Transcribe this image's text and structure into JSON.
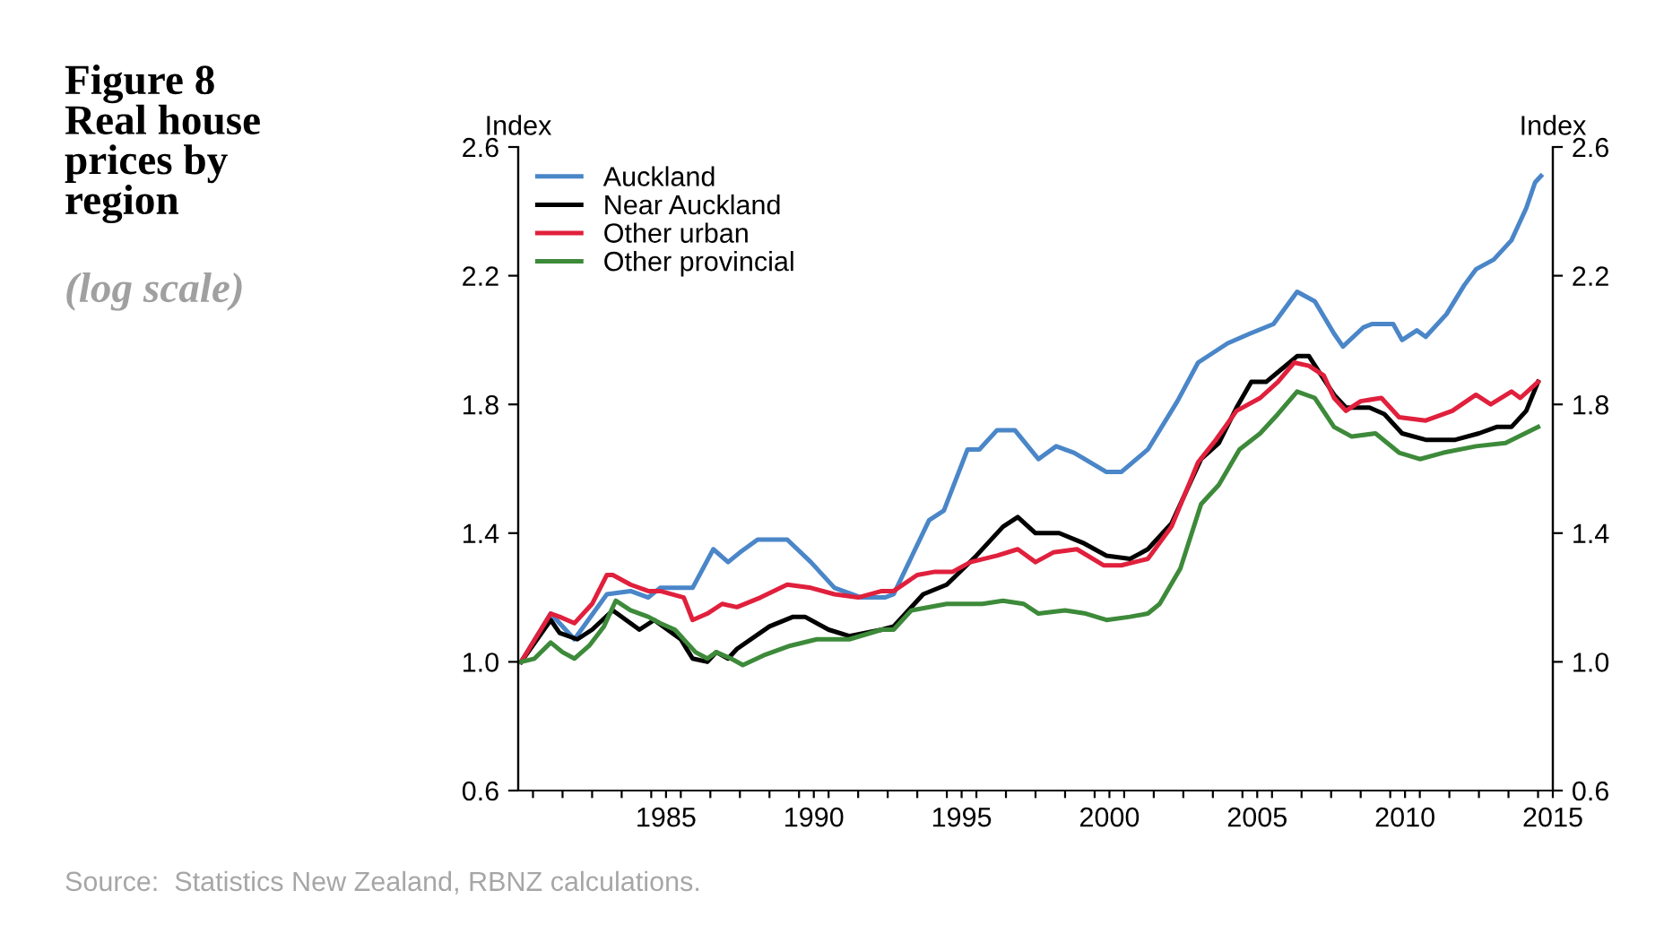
{
  "chart_data": {
    "type": "line",
    "title": "Figure 8\nReal house\nprices by\nregion",
    "subtitle": "(log scale)",
    "ylabel": "Index",
    "y2label": "Index",
    "xlim": [
      1980.5,
      2015.5
    ],
    "xticks": [
      {
        "value": 1981,
        "label": null
      },
      {
        "value": 1982,
        "label": null
      },
      {
        "value": 1983,
        "label": null
      },
      {
        "value": 1984,
        "label": null
      },
      {
        "value": 1985,
        "label": null
      },
      {
        "value": 1985.5,
        "label": "1985"
      },
      {
        "value": 1986,
        "label": null
      },
      {
        "value": 1987,
        "label": null
      },
      {
        "value": 1988,
        "label": null
      },
      {
        "value": 1989,
        "label": null
      },
      {
        "value": 1990,
        "label": null
      },
      {
        "value": 1990.5,
        "label": "1990"
      },
      {
        "value": 1991,
        "label": null
      },
      {
        "value": 1992,
        "label": null
      },
      {
        "value": 1993,
        "label": null
      },
      {
        "value": 1994,
        "label": null
      },
      {
        "value": 1995,
        "label": null
      },
      {
        "value": 1995.5,
        "label": "1995"
      },
      {
        "value": 1996,
        "label": null
      },
      {
        "value": 1997,
        "label": null
      },
      {
        "value": 1998,
        "label": null
      },
      {
        "value": 1999,
        "label": null
      },
      {
        "value": 2000,
        "label": null
      },
      {
        "value": 2000.5,
        "label": "2000"
      },
      {
        "value": 2001,
        "label": null
      },
      {
        "value": 2002,
        "label": null
      },
      {
        "value": 2003,
        "label": null
      },
      {
        "value": 2004,
        "label": null
      },
      {
        "value": 2005,
        "label": null
      },
      {
        "value": 2005.5,
        "label": "2005"
      },
      {
        "value": 2006,
        "label": null
      },
      {
        "value": 2007,
        "label": null
      },
      {
        "value": 2008,
        "label": null
      },
      {
        "value": 2009,
        "label": null
      },
      {
        "value": 2010,
        "label": null
      },
      {
        "value": 2010.5,
        "label": "2010"
      },
      {
        "value": 2011,
        "label": null
      },
      {
        "value": 2012,
        "label": null
      },
      {
        "value": 2013,
        "label": null
      },
      {
        "value": 2014,
        "label": null
      },
      {
        "value": 2015,
        "label": null
      },
      {
        "value": 2015.5,
        "label": "2015"
      }
    ],
    "ylim": [
      0.6,
      2.6
    ],
    "yticks": [
      {
        "value": 0.6,
        "label": "0.6"
      },
      {
        "value": 1.0,
        "label": "1.0"
      },
      {
        "value": 1.4,
        "label": "1.4"
      },
      {
        "value": 1.8,
        "label": "1.8"
      },
      {
        "value": 2.2,
        "label": "2.2"
      },
      {
        "value": 2.6,
        "label": "2.6"
      }
    ],
    "y2lim": [
      0.6,
      2.6
    ],
    "y2ticks": [
      {
        "value": 0.6,
        "label": "0.6"
      },
      {
        "value": 1.0,
        "label": "1.0"
      },
      {
        "value": 1.4,
        "label": "1.4"
      },
      {
        "value": 1.8,
        "label": "1.8"
      },
      {
        "value": 2.2,
        "label": "2.2"
      },
      {
        "value": 2.6,
        "label": "2.6"
      }
    ],
    "grid": false,
    "legend": "top left",
    "marker": "none",
    "line_style": "solid",
    "annotations": [
      "Source:  Statistics New Zealand, RBNZ calculations."
    ],
    "series": [
      {
        "name": "Auckland",
        "color": "#4a86c8",
        "x": [
          1980.6,
          1981.6,
          1982.4,
          1983.5,
          1984.3,
          1984.9,
          1985.3,
          1986.4,
          1987.1,
          1987.6,
          1988.0,
          1988.6,
          1989.6,
          1990.4,
          1991.2,
          1992.1,
          1992.9,
          1993.2,
          1994.4,
          1994.9,
          1995.7,
          1996.1,
          1996.7,
          1997.3,
          1998.1,
          1998.7,
          1999.3,
          2000.4,
          2000.9,
          2001.8,
          2002.8,
          2003.5,
          2004.0,
          2004.5,
          2005.25,
          2006.05,
          2006.85,
          2007.45,
          2008.1,
          2008.4,
          2009.1,
          2009.4,
          2010.1,
          2010.4,
          2010.9,
          2011.2,
          2011.9,
          2012.5,
          2012.9,
          2013.5,
          2014.1,
          2014.6,
          2014.9,
          2015.1
        ],
        "values": [
          1.0,
          1.15,
          1.07,
          1.21,
          1.22,
          1.2,
          1.23,
          1.23,
          1.35,
          1.31,
          1.34,
          1.38,
          1.38,
          1.31,
          1.23,
          1.2,
          1.2,
          1.21,
          1.44,
          1.47,
          1.66,
          1.66,
          1.72,
          1.72,
          1.63,
          1.67,
          1.65,
          1.59,
          1.59,
          1.66,
          1.81,
          1.93,
          1.96,
          1.99,
          2.02,
          2.05,
          2.15,
          2.12,
          2.02,
          1.98,
          2.04,
          2.05,
          2.05,
          2.0,
          2.03,
          2.01,
          2.08,
          2.17,
          2.22,
          2.25,
          2.31,
          2.41,
          2.49,
          2.51
        ]
      },
      {
        "name": "Near Auckland",
        "color": "#000000",
        "x": [
          1980.6,
          1981.6,
          1981.9,
          1982.5,
          1983.0,
          1983.7,
          1984.6,
          1985.1,
          1986.0,
          1986.4,
          1986.9,
          1987.2,
          1987.6,
          1987.9,
          1989.0,
          1989.8,
          1990.2,
          1991.0,
          1991.7,
          1992.8,
          1993.2,
          1994.2,
          1995.0,
          1996.0,
          1996.9,
          1997.4,
          1998.0,
          1998.8,
          1999.6,
          2000.4,
          2001.2,
          2001.8,
          2002.6,
          2003.6,
          2004.2,
          2004.8,
          2005.3,
          2005.8,
          2006.2,
          2006.85,
          2007.25,
          2007.6,
          2008.1,
          2008.5,
          2009.3,
          2009.8,
          2010.4,
          2011.2,
          2012.2,
          2013.0,
          2013.6,
          2014.1,
          2014.6,
          2015.0
        ],
        "values": [
          1.0,
          1.13,
          1.09,
          1.07,
          1.1,
          1.16,
          1.1,
          1.13,
          1.07,
          1.01,
          1.0,
          1.03,
          1.01,
          1.04,
          1.11,
          1.14,
          1.14,
          1.1,
          1.08,
          1.1,
          1.11,
          1.21,
          1.24,
          1.33,
          1.42,
          1.45,
          1.4,
          1.4,
          1.37,
          1.33,
          1.32,
          1.35,
          1.43,
          1.63,
          1.68,
          1.79,
          1.87,
          1.87,
          1.9,
          1.95,
          1.95,
          1.9,
          1.83,
          1.79,
          1.79,
          1.77,
          1.71,
          1.69,
          1.69,
          1.71,
          1.73,
          1.73,
          1.78,
          1.87
        ]
      },
      {
        "name": "Other urban",
        "color": "#e0203c",
        "x": [
          1980.6,
          1981.6,
          1981.9,
          1982.4,
          1983.0,
          1983.5,
          1983.7,
          1984.3,
          1984.9,
          1985.3,
          1986.1,
          1986.4,
          1986.9,
          1987.4,
          1987.9,
          1988.7,
          1989.6,
          1990.4,
          1991.2,
          1992.0,
          1992.8,
          1993.2,
          1994.0,
          1994.6,
          1995.2,
          1995.8,
          1996.7,
          1997.4,
          1998.0,
          1998.6,
          1999.4,
          2000.3,
          2000.9,
          2001.8,
          2002.6,
          2003.5,
          2004.1,
          2004.8,
          2005.6,
          2006.2,
          2006.75,
          2007.25,
          2007.75,
          2008.1,
          2008.5,
          2009.0,
          2009.7,
          2010.3,
          2011.2,
          2012.1,
          2012.9,
          2013.4,
          2014.1,
          2014.4,
          2015.0
        ],
        "values": [
          1.0,
          1.15,
          1.14,
          1.12,
          1.18,
          1.27,
          1.27,
          1.24,
          1.22,
          1.22,
          1.2,
          1.13,
          1.15,
          1.18,
          1.17,
          1.2,
          1.24,
          1.23,
          1.21,
          1.2,
          1.22,
          1.22,
          1.27,
          1.28,
          1.28,
          1.31,
          1.33,
          1.35,
          1.31,
          1.34,
          1.35,
          1.3,
          1.3,
          1.32,
          1.42,
          1.62,
          1.69,
          1.78,
          1.82,
          1.87,
          1.93,
          1.92,
          1.89,
          1.82,
          1.78,
          1.81,
          1.82,
          1.76,
          1.75,
          1.78,
          1.83,
          1.8,
          1.84,
          1.82,
          1.87
        ]
      },
      {
        "name": "Other provincial",
        "color": "#3d8a3a",
        "x": [
          1980.6,
          1981.05,
          1981.6,
          1982.0,
          1982.4,
          1982.9,
          1983.4,
          1983.8,
          1984.3,
          1984.9,
          1985.3,
          1985.8,
          1986.2,
          1986.5,
          1986.9,
          1987.2,
          1987.7,
          1988.1,
          1988.8,
          1989.7,
          1990.6,
          1991.7,
          1992.8,
          1993.2,
          1993.8,
          1995.0,
          1996.2,
          1996.9,
          1997.6,
          1998.1,
          1999.0,
          1999.7,
          2000.4,
          2001.2,
          2001.8,
          2002.2,
          2002.9,
          2003.6,
          2004.2,
          2004.9,
          2005.6,
          2006.2,
          2006.85,
          2007.45,
          2008.1,
          2008.7,
          2009.5,
          2010.3,
          2011.0,
          2011.8,
          2012.9,
          2013.9,
          2015.0
        ],
        "values": [
          1.0,
          1.01,
          1.06,
          1.03,
          1.01,
          1.05,
          1.11,
          1.19,
          1.16,
          1.14,
          1.12,
          1.1,
          1.06,
          1.03,
          1.01,
          1.03,
          1.01,
          0.99,
          1.02,
          1.05,
          1.07,
          1.07,
          1.1,
          1.1,
          1.16,
          1.18,
          1.18,
          1.19,
          1.18,
          1.15,
          1.16,
          1.15,
          1.13,
          1.14,
          1.15,
          1.18,
          1.29,
          1.49,
          1.55,
          1.66,
          1.71,
          1.77,
          1.84,
          1.82,
          1.73,
          1.7,
          1.71,
          1.65,
          1.63,
          1.65,
          1.67,
          1.68,
          1.73
        ]
      }
    ]
  }
}
